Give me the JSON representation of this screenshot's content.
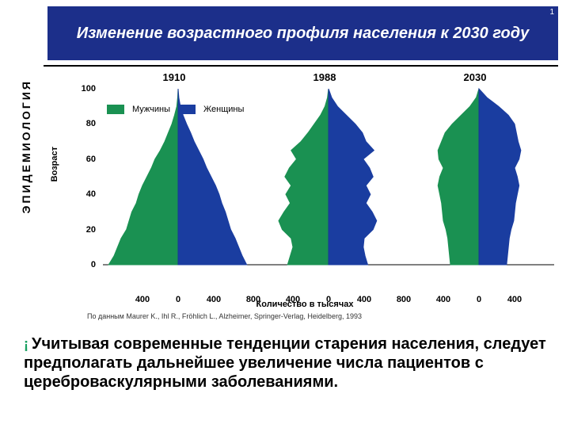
{
  "layout": {
    "header_bg": "#1c2f8a",
    "male_color": "#1a9152",
    "female_color": "#1a3da0",
    "slide_number": "1"
  },
  "header": {
    "title": "Изменение возрастного профиля населения к 2030 году"
  },
  "side_label": "ЭПИДЕМИОЛОГИЯ",
  "chart": {
    "y_axis_label": "Возраст",
    "x_axis_label": "Количество в тысячах",
    "y_ticks": [
      0,
      20,
      40,
      60,
      80,
      100
    ],
    "x_tick_values": [
      400,
      0,
      400,
      800,
      400,
      0,
      400,
      800,
      400,
      0,
      400
    ],
    "legend": {
      "male": "Мужчины",
      "female": "Женщины"
    },
    "panels": [
      {
        "year": "1910",
        "male": [
          780,
          720,
          680,
          640,
          580,
          550,
          520,
          470,
          440,
          400,
          350,
          300,
          260,
          200,
          150,
          110,
          70,
          40,
          15,
          5,
          0
        ],
        "female": [
          770,
          720,
          680,
          640,
          590,
          560,
          530,
          490,
          460,
          420,
          370,
          320,
          280,
          230,
          180,
          140,
          95,
          55,
          25,
          8,
          0
        ]
      },
      {
        "year": "1988",
        "male": [
          460,
          430,
          400,
          420,
          520,
          560,
          500,
          430,
          480,
          420,
          490,
          440,
          360,
          420,
          310,
          230,
          160,
          90,
          40,
          12,
          0
        ],
        "female": [
          440,
          410,
          390,
          400,
          500,
          540,
          490,
          420,
          470,
          420,
          500,
          460,
          390,
          510,
          420,
          380,
          300,
          200,
          100,
          35,
          0
        ]
      },
      {
        "year": "2030",
        "male": [
          320,
          330,
          340,
          350,
          370,
          400,
          410,
          420,
          440,
          460,
          440,
          400,
          450,
          460,
          420,
          380,
          300,
          200,
          100,
          30,
          0
        ],
        "female": [
          310,
          320,
          330,
          340,
          360,
          390,
          400,
          410,
          430,
          450,
          430,
          400,
          450,
          470,
          440,
          420,
          400,
          330,
          220,
          90,
          0
        ]
      }
    ]
  },
  "source": "По данным Maurer K., Ihl R., Fröhlich L., Alzheimer, Springer-Verlag, Heidelberg, 1993",
  "caption": "Учитывая современные тенденции старения населения, следует предполагать дальнейшее увеличение числа пациентов с цереброваскулярными заболеваниями."
}
